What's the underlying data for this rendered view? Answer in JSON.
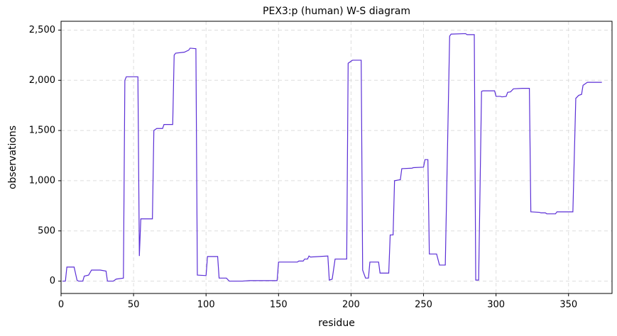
{
  "chart_data": {
    "type": "line",
    "title": "PEX3:p (human) W-S diagram",
    "x_label": "residue",
    "y_label": "observations",
    "x": [
      1,
      3,
      4,
      9,
      11,
      12,
      15,
      16,
      19,
      21,
      27,
      31,
      32,
      36,
      38,
      43,
      44,
      45,
      53,
      54,
      55,
      63,
      64,
      66,
      70,
      71,
      77,
      78,
      79,
      85,
      88,
      89,
      93,
      94,
      100,
      101,
      108,
      109,
      114,
      116,
      125,
      130,
      149,
      150,
      163,
      164,
      167,
      168,
      170,
      171,
      172,
      184,
      185,
      187,
      189,
      197,
      198,
      201,
      207,
      208,
      210,
      212,
      213,
      219,
      220,
      226,
      227,
      229,
      230,
      234,
      235,
      242,
      243,
      250,
      251,
      253,
      254,
      259,
      261,
      265,
      268,
      269,
      279,
      280,
      285,
      286,
      288,
      290,
      291,
      299,
      300,
      303,
      304,
      307,
      308,
      310,
      312,
      318,
      323,
      324,
      330,
      331,
      334,
      335,
      341,
      342,
      353,
      355,
      357,
      359,
      360,
      362,
      363,
      373
    ],
    "series": [
      {
        "name": "observations",
        "color": "#5b2fd6",
        "values": [
          0,
          0,
          140,
          140,
          10,
          0,
          0,
          50,
          60,
          110,
          110,
          100,
          0,
          0,
          20,
          30,
          2000,
          2035,
          2035,
          250,
          620,
          620,
          1500,
          1520,
          1520,
          1560,
          1560,
          2250,
          2270,
          2280,
          2300,
          2320,
          2315,
          60,
          55,
          245,
          245,
          30,
          30,
          0,
          0,
          5,
          5,
          190,
          190,
          200,
          200,
          220,
          220,
          250,
          240,
          250,
          10,
          20,
          220,
          220,
          2170,
          2200,
          2200,
          110,
          30,
          30,
          190,
          190,
          80,
          80,
          460,
          460,
          1000,
          1010,
          1120,
          1125,
          1130,
          1135,
          1210,
          1210,
          270,
          270,
          160,
          160,
          2440,
          2460,
          2465,
          2455,
          2455,
          10,
          10,
          1890,
          1895,
          1895,
          1840,
          1840,
          1835,
          1840,
          1880,
          1885,
          1915,
          1920,
          1920,
          690,
          685,
          680,
          680,
          670,
          670,
          690,
          690,
          1820,
          1850,
          1860,
          1950,
          1970,
          1980,
          1980
        ]
      }
    ],
    "xlim": [
      0,
      380
    ],
    "ylim": [
      -123,
      2588
    ],
    "xticks": [
      0,
      50,
      100,
      150,
      200,
      250,
      300,
      350
    ],
    "yticks": [
      0,
      500,
      {
        "value": 1000,
        "label": "1,000"
      },
      {
        "value": 1500,
        "label": "1,500"
      },
      {
        "value": 2000,
        "label": "2,000"
      },
      {
        "value": 2500,
        "label": "2,500"
      }
    ],
    "grid": true
  }
}
